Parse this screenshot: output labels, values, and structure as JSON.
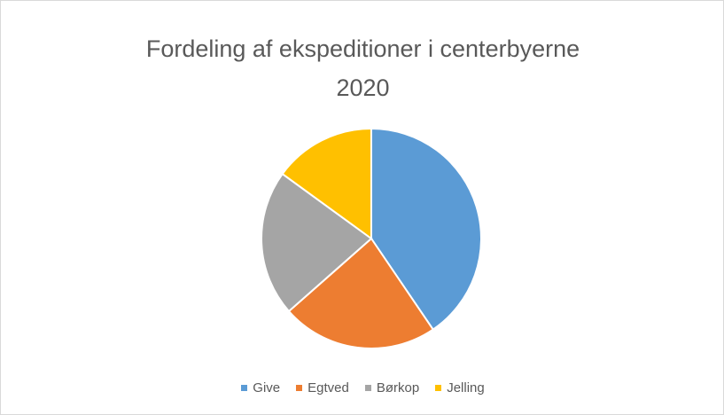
{
  "chart_data": {
    "type": "pie",
    "title": "Fordeling af ekspeditioner i centerbyerne",
    "subtitle": "2020",
    "categories": [
      "Give",
      "Egtved",
      "Børkop",
      "Jelling"
    ],
    "values": [
      40.5,
      23.0,
      21.5,
      15.0
    ],
    "colors": [
      "#5b9bd5",
      "#ed7d31",
      "#a5a5a5",
      "#ffc000"
    ],
    "start_angle_deg": 0,
    "direction": "clockwise",
    "legend_position": "bottom"
  }
}
